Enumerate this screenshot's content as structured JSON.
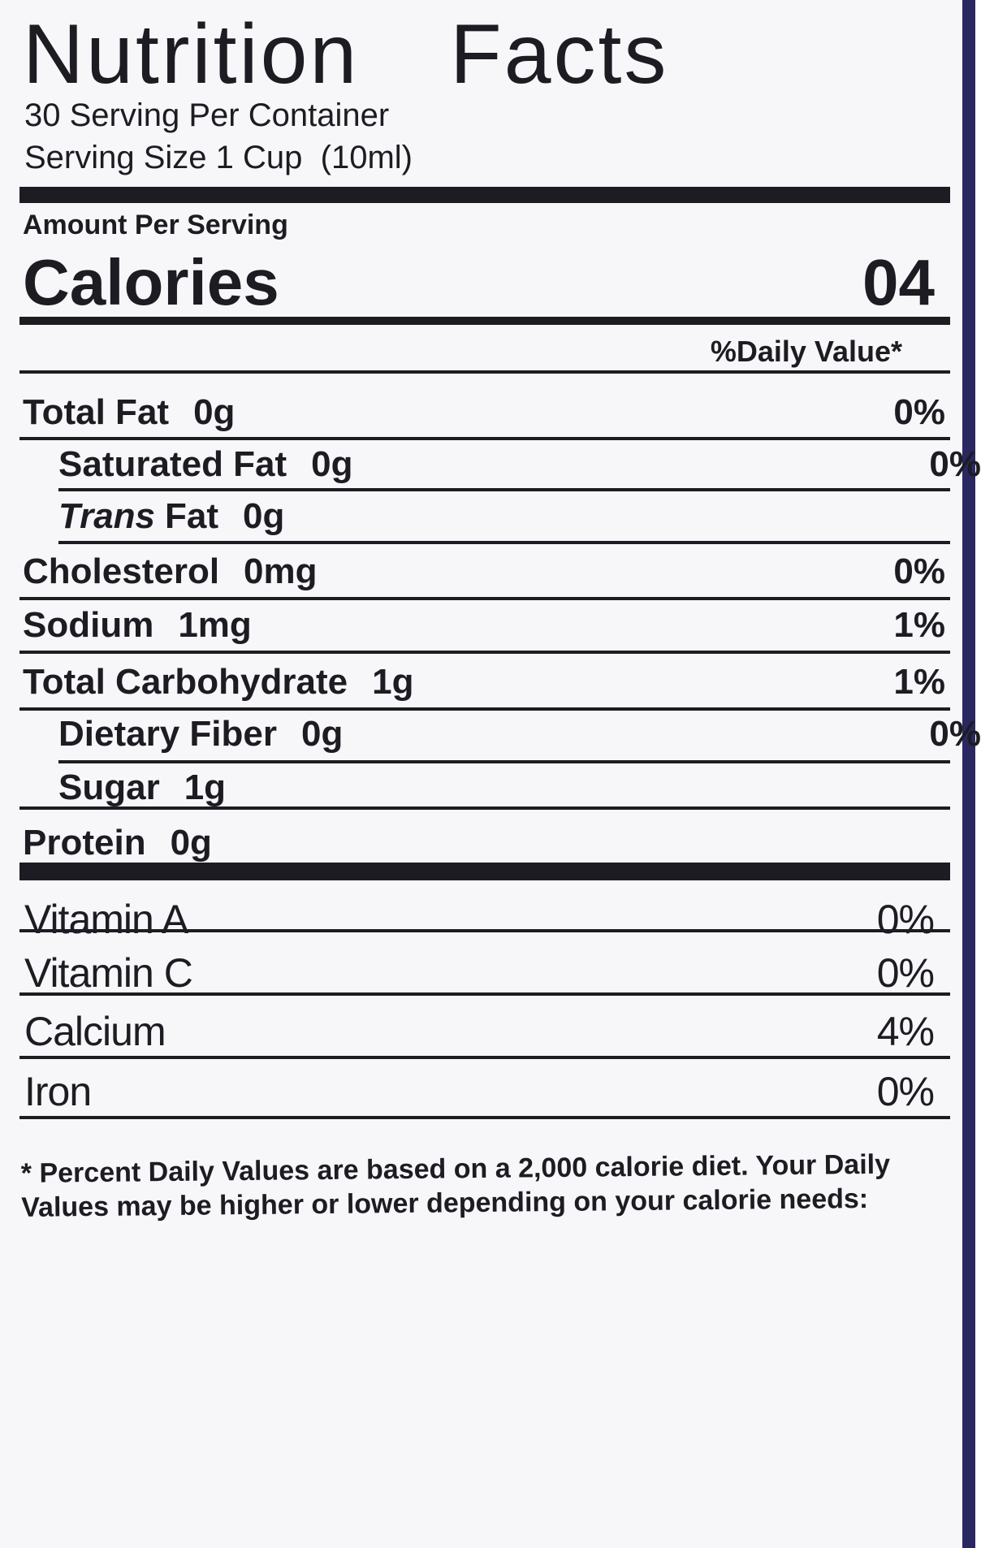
{
  "title": "Nutrition Facts",
  "servings_per_container": "30 Serving Per Container",
  "serving_size": "Serving Size 1 Cup  (10ml)",
  "amount_per_serving": "Amount Per Serving",
  "calories": {
    "label": "Calories",
    "value": "04"
  },
  "daily_value_header": "%Daily Value*",
  "nutrients": [
    {
      "name": "Total Fat",
      "amount": "0g",
      "dv": "0%",
      "sub": false
    },
    {
      "name": "Saturated Fat",
      "amount": "0g",
      "dv": "0%",
      "sub": true
    },
    {
      "italic": "Trans",
      "name": "Fat",
      "amount": "0g",
      "sub": true
    },
    {
      "name": "Cholesterol",
      "amount": "0mg",
      "dv": "0%",
      "sub": false
    },
    {
      "name": "Sodium",
      "amount": "1mg",
      "dv": "1%",
      "sub": false
    },
    {
      "name": "Total Carbohydrate",
      "amount": "1g",
      "dv": "1%",
      "sub": false
    },
    {
      "name": "Dietary Fiber",
      "amount": "0g",
      "dv": "0%",
      "sub": true
    },
    {
      "name": "Sugar",
      "amount": "1g",
      "sub": true
    },
    {
      "name": "Protein",
      "amount": "0g",
      "sub": false
    }
  ],
  "vitamins": [
    {
      "name": "Vitamin A",
      "dv": "0%"
    },
    {
      "name": "Vitamin C",
      "dv": "0%"
    },
    {
      "name": "Calcium",
      "dv": "4%"
    },
    {
      "name": "Iron",
      "dv": "0%"
    }
  ],
  "footnote": "* Percent Daily Values are based on a 2,000 calorie diet. Your Daily Values may be higher or lower depending on your calorie needs:"
}
